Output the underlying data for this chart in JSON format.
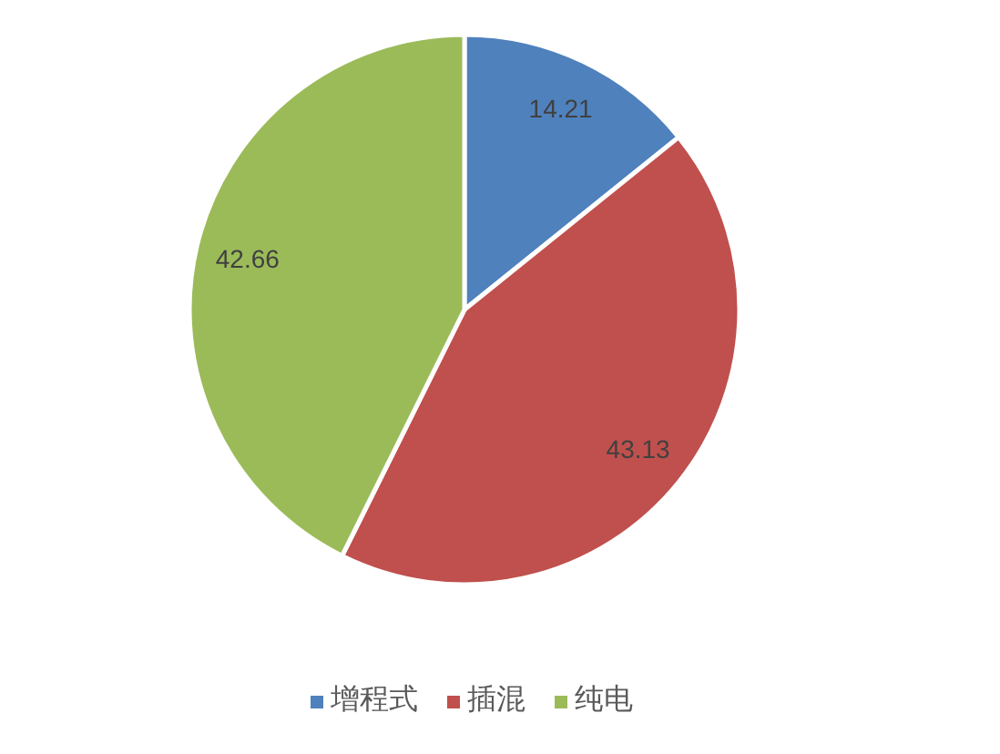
{
  "chart_data": {
    "type": "pie",
    "categories": [
      "增程式",
      "插混",
      "纯电"
    ],
    "values": [
      14.21,
      43.13,
      42.66
    ],
    "colors": [
      "#4f81bd",
      "#c0504d",
      "#9bbb59"
    ],
    "data_labels": true,
    "legend": "bottom"
  }
}
